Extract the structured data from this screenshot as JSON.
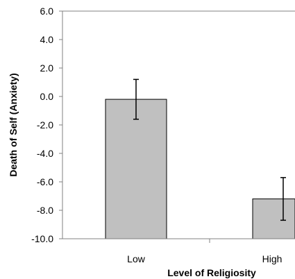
{
  "chart_data": {
    "type": "bar",
    "title": "",
    "xlabel": "Level of Religiosity",
    "ylabel": "Death of Self (Anxiety)",
    "categories": [
      "Low",
      "High"
    ],
    "values": [
      -0.2,
      -7.2
    ],
    "error_plus_minus": [
      1.4,
      1.5
    ],
    "ylim": [
      -10,
      6
    ],
    "yticks": [
      "6.0",
      "4.0",
      "2.0",
      "0.0",
      "-2.0",
      "-4.0",
      "-6.0",
      "-8.0",
      "-10.0"
    ],
    "ytick_values": [
      6,
      4,
      2,
      0,
      -2,
      -4,
      -6,
      -8,
      -10
    ],
    "grid": false,
    "legend": "none",
    "colors": {
      "bar_fill": "#c0c0c0",
      "bar_stroke": "#000000",
      "axis": "#808080",
      "error_bar": "#000000"
    }
  }
}
